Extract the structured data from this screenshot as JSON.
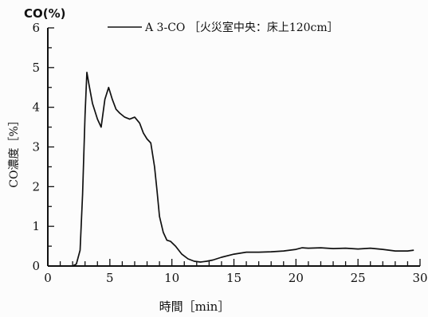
{
  "chart_data": {
    "type": "line",
    "unit_label": "CO(%)",
    "xlabel": "時間［min］",
    "ylabel": "CO濃度［%］",
    "xlim": [
      0,
      30
    ],
    "ylim": [
      0,
      6
    ],
    "x_ticks": [
      0,
      5,
      10,
      15,
      20,
      25,
      30
    ],
    "y_ticks": [
      0,
      1,
      2,
      3,
      4,
      5,
      6
    ],
    "grid": false,
    "legend_position": "top",
    "series": [
      {
        "name": "A 3-CO ［火災室中央：床上120cm］",
        "color": "#111111",
        "x": [
          2.0,
          2.3,
          2.6,
          2.8,
          3.0,
          3.15,
          3.3,
          3.6,
          4.0,
          4.3,
          4.6,
          4.9,
          5.2,
          5.5,
          5.8,
          6.2,
          6.6,
          7.0,
          7.4,
          7.7,
          8.0,
          8.3,
          8.6,
          8.8,
          9.0,
          9.3,
          9.6,
          9.9,
          10.3,
          10.8,
          11.3,
          11.8,
          12.3,
          12.8,
          13.3,
          14.0,
          15.0,
          16.0,
          17.0,
          18.0,
          19.0,
          19.5,
          20.0,
          20.5,
          21.0,
          22.0,
          23.0,
          24.0,
          25.0,
          26.0,
          27.0,
          28.0,
          29.0,
          29.5
        ],
        "y": [
          0.0,
          0.05,
          0.4,
          1.8,
          3.8,
          4.88,
          4.6,
          4.1,
          3.7,
          3.5,
          4.2,
          4.5,
          4.2,
          3.95,
          3.85,
          3.75,
          3.7,
          3.75,
          3.6,
          3.35,
          3.2,
          3.1,
          2.5,
          1.9,
          1.25,
          0.85,
          0.65,
          0.62,
          0.5,
          0.3,
          0.18,
          0.12,
          0.1,
          0.12,
          0.15,
          0.22,
          0.3,
          0.35,
          0.35,
          0.36,
          0.38,
          0.4,
          0.42,
          0.46,
          0.45,
          0.46,
          0.44,
          0.45,
          0.43,
          0.45,
          0.42,
          0.38,
          0.38,
          0.4
        ]
      }
    ]
  }
}
